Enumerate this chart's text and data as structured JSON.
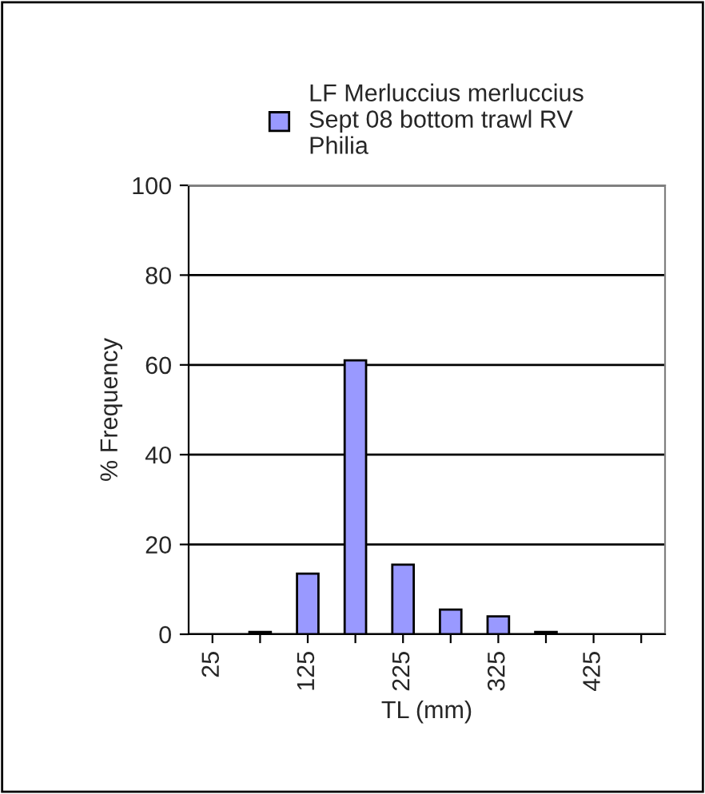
{
  "chart_data": {
    "type": "bar",
    "xlabel": "TL (mm)",
    "ylabel": "% Frequency",
    "categories": [
      "25",
      null,
      "125",
      null,
      "225",
      null,
      "325",
      null,
      "425",
      null
    ],
    "series": [
      {
        "name": "LF Merluccius merluccius\nSept 08 bottom trawl RV\nPhilia",
        "color": "#9999ff",
        "values": [
          0,
          0.5,
          13.5,
          61,
          15.5,
          5.5,
          4,
          0.5,
          0,
          0
        ]
      }
    ],
    "ylim": [
      0,
      100
    ],
    "yticks": [
      0,
      20,
      40,
      60,
      80,
      100
    ],
    "grid": "y",
    "legend": "top"
  }
}
